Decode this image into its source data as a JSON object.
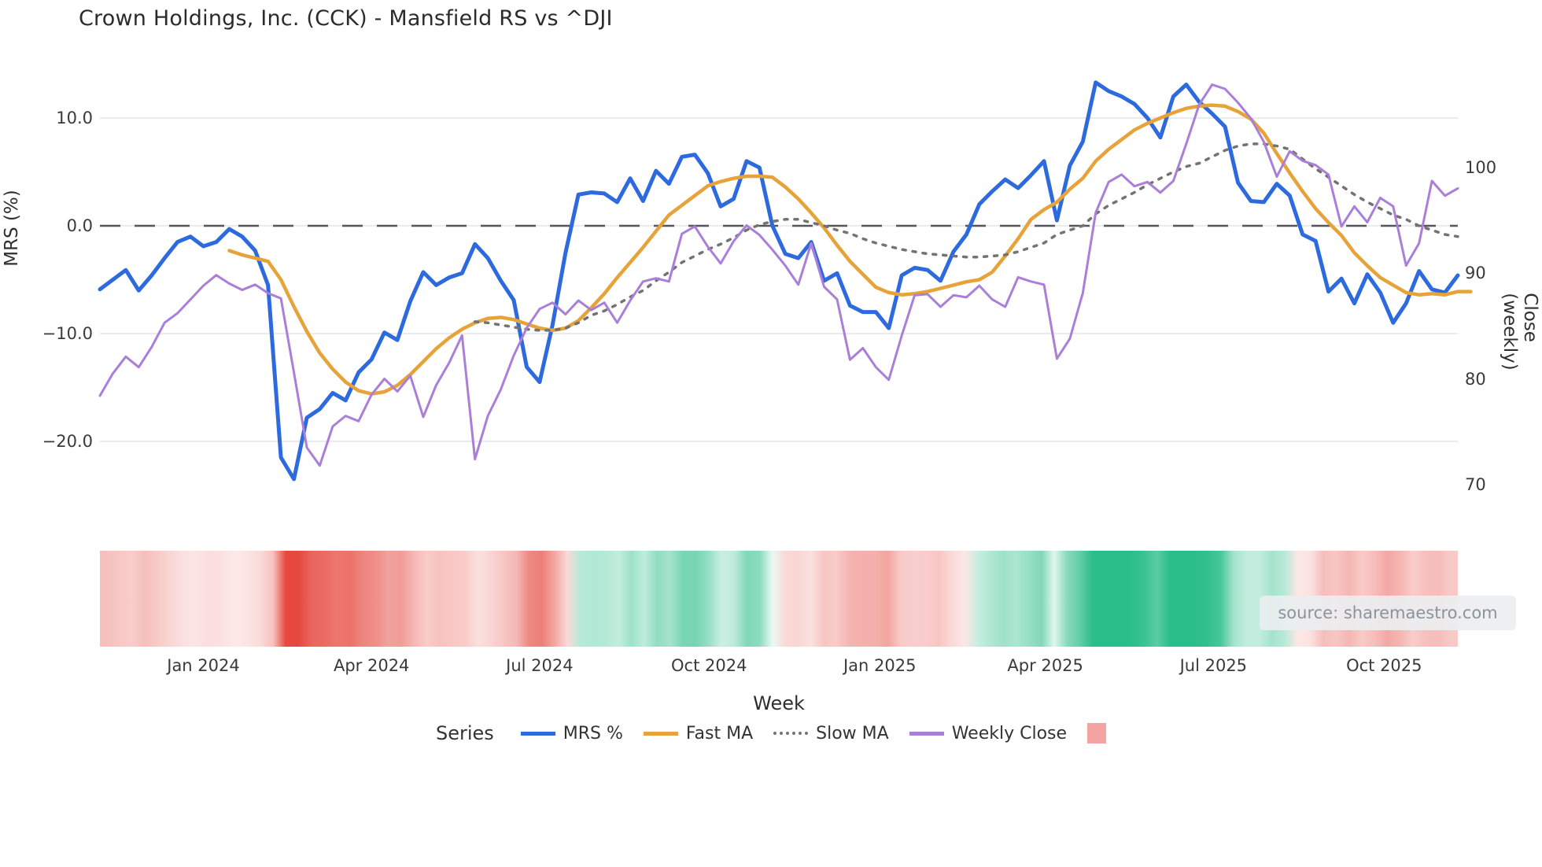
{
  "title": "Crown Holdings, Inc. (CCK) - Mansfield RS vs ^DJI",
  "source_label": "source: sharemaestro.com",
  "colors": {
    "mrs": "#2d6ade",
    "fast_ma": "#e7a33a",
    "slow_ma": "#737373",
    "weekly_close": "#a97fd8",
    "zero_dash": "#55555f",
    "grid": "#e9ebee",
    "heat_red": "#e6483f",
    "heat_green": "#2cbe8a",
    "legend_square": "#f5a2a2"
  },
  "legend": {
    "title": "Series",
    "items": [
      {
        "label": "MRS %",
        "swatch": "line-solid",
        "color_key": "mrs"
      },
      {
        "label": "Fast MA",
        "swatch": "line-solid",
        "color_key": "fast_ma"
      },
      {
        "label": "Slow MA",
        "swatch": "line-dotted",
        "color_key": "slow_ma"
      },
      {
        "label": "Weekly Close",
        "swatch": "line-solid",
        "color_key": "weekly_close"
      },
      {
        "label": "",
        "swatch": "square",
        "color_key": "legend_square"
      }
    ]
  },
  "chart_data": {
    "type": "line",
    "title": "Crown Holdings, Inc. (CCK) - Mansfield RS vs ^DJI",
    "xlabel": "Week",
    "frequency": "weekly",
    "start_date": "2023-11-06",
    "end_date": "2025-11-10",
    "n_weeks": 106,
    "x_tick_labels": [
      "Jan 2024",
      "Apr 2024",
      "Jul 2024",
      "Oct 2024",
      "Jan 2025",
      "Apr 2025",
      "Jul 2025",
      "Oct 2025"
    ],
    "x_tick_weeks": [
      8.0,
      21.0,
      34.0,
      47.1,
      60.3,
      73.1,
      86.1,
      99.3
    ],
    "y_left": {
      "label": "MRS (%)",
      "tick_labels": [
        "10.0",
        "0.0",
        "−10.0",
        "−20.0"
      ],
      "ticks": [
        10,
        0,
        -10,
        -20
      ],
      "range": [
        -26,
        14.5
      ],
      "zero_line": true,
      "grid": true
    },
    "y_right": {
      "label": "Close (weekly)",
      "tick_labels": [
        "100",
        "90",
        "80",
        "70"
      ],
      "ticks": [
        100,
        90,
        80,
        70
      ],
      "range": [
        66,
        112
      ]
    },
    "series": [
      {
        "name": "MRS %",
        "axis": "left",
        "style": "solid",
        "color_key": "mrs",
        "width": 5,
        "values": [
          -5.9,
          -5.0,
          -4.1,
          -6.0,
          -4.6,
          -3.0,
          -1.5,
          -1.0,
          -1.9,
          -1.5,
          -0.3,
          -1.0,
          -2.3,
          -5.5,
          -21.5,
          -23.5,
          -17.8,
          -17.0,
          -15.5,
          -16.2,
          -13.6,
          -12.4,
          -9.9,
          -10.6,
          -7.0,
          -4.3,
          -5.5,
          -4.8,
          -4.4,
          -1.7,
          -3.0,
          -5.1,
          -6.9,
          -13.1,
          -14.5,
          -9.2,
          -2.5,
          2.9,
          3.1,
          3.0,
          2.2,
          4.4,
          2.3,
          5.1,
          3.9,
          6.4,
          6.6,
          4.9,
          1.8,
          2.5,
          6.0,
          5.4,
          0.0,
          -2.6,
          -3.0,
          -1.5,
          -5.1,
          -4.4,
          -7.4,
          -8.0,
          -8.0,
          -9.5,
          -4.6,
          -3.9,
          -4.1,
          -5.1,
          -2.4,
          -0.8,
          2.0,
          3.2,
          4.3,
          3.5,
          4.7,
          6.0,
          0.5,
          5.6,
          7.8,
          13.3,
          12.5,
          12.0,
          11.3,
          10.0,
          8.2,
          12.0,
          13.1,
          11.5,
          10.4,
          9.2,
          4.0,
          2.3,
          2.2,
          3.9,
          2.8,
          -0.8,
          -1.4,
          -6.1,
          -4.9,
          -7.2,
          -4.5,
          -6.2,
          -9.0,
          -7.2,
          -4.2,
          -5.9,
          -6.2,
          -4.6
        ]
      },
      {
        "name": "Fast MA",
        "axis": "left",
        "style": "solid",
        "color_key": "fast_ma",
        "width": 4.5,
        "values": [
          null,
          null,
          null,
          null,
          null,
          null,
          null,
          null,
          null,
          null,
          -2.3,
          -2.7,
          -3.0,
          -3.3,
          -5.0,
          -7.5,
          -9.8,
          -11.8,
          -13.3,
          -14.5,
          -15.3,
          -15.6,
          -15.4,
          -14.8,
          -13.8,
          -12.6,
          -11.4,
          -10.4,
          -9.6,
          -9.0,
          -8.6,
          -8.5,
          -8.7,
          -9.1,
          -9.5,
          -9.7,
          -9.5,
          -8.8,
          -7.6,
          -6.3,
          -4.8,
          -3.4,
          -2.0,
          -0.5,
          1.0,
          1.9,
          2.8,
          3.7,
          4.1,
          4.4,
          4.6,
          4.6,
          4.5,
          3.6,
          2.5,
          1.2,
          -0.2,
          -1.8,
          -3.3,
          -4.5,
          -5.7,
          -6.2,
          -6.4,
          -6.3,
          -6.1,
          -5.8,
          -5.5,
          -5.2,
          -5.0,
          -4.3,
          -2.8,
          -1.2,
          0.6,
          1.5,
          2.2,
          3.4,
          4.4,
          6.0,
          7.1,
          8.0,
          8.9,
          9.5,
          10.0,
          10.5,
          10.9,
          11.1,
          11.2,
          11.1,
          10.6,
          9.9,
          8.6,
          6.7,
          4.9,
          3.2,
          1.6,
          0.3,
          -0.9,
          -2.5,
          -3.7,
          -4.8,
          -5.5,
          -6.2,
          -6.4,
          -6.3,
          -6.4,
          -6.1,
          -6.1
        ]
      },
      {
        "name": "Slow MA",
        "axis": "left",
        "style": "dotted",
        "color_key": "slow_ma",
        "width": 3.5,
        "values": [
          null,
          null,
          null,
          null,
          null,
          null,
          null,
          null,
          null,
          null,
          null,
          null,
          null,
          null,
          null,
          null,
          null,
          null,
          null,
          null,
          null,
          null,
          null,
          null,
          null,
          null,
          null,
          null,
          null,
          -8.9,
          -9.0,
          -9.2,
          -9.4,
          -9.6,
          -9.7,
          -9.7,
          -9.5,
          -9.0,
          -8.3,
          -7.9,
          -7.3,
          -6.6,
          -6.0,
          -5.1,
          -4.3,
          -3.4,
          -2.8,
          -2.2,
          -1.7,
          -1.1,
          -0.4,
          0.1,
          0.4,
          0.6,
          0.6,
          0.3,
          0.0,
          -0.4,
          -0.7,
          -1.2,
          -1.6,
          -1.9,
          -2.2,
          -2.4,
          -2.6,
          -2.7,
          -2.8,
          -2.9,
          -2.9,
          -2.8,
          -2.7,
          -2.4,
          -2.0,
          -1.6,
          -0.8,
          -0.4,
          0.0,
          1.1,
          1.9,
          2.5,
          3.1,
          3.8,
          4.4,
          5.0,
          5.5,
          5.8,
          6.4,
          7.0,
          7.4,
          7.6,
          7.6,
          7.4,
          7.1,
          6.2,
          5.3,
          4.5,
          3.7,
          2.9,
          2.2,
          1.6,
          1.0,
          0.6,
          0.0,
          -0.4,
          -0.8,
          -1.0
        ]
      },
      {
        "name": "Weekly Close",
        "axis": "right",
        "style": "solid",
        "color_key": "weekly_close",
        "width": 3,
        "values": [
          78.4,
          80.5,
          82.1,
          81.1,
          83.0,
          85.3,
          86.2,
          87.5,
          88.8,
          89.8,
          89.0,
          88.4,
          88.9,
          88.1,
          87.6,
          80.6,
          73.5,
          71.8,
          75.5,
          76.5,
          76.0,
          78.5,
          80.0,
          78.8,
          80.3,
          76.4,
          79.4,
          81.5,
          84.1,
          72.4,
          76.5,
          79.0,
          82.2,
          84.8,
          86.6,
          87.2,
          86.1,
          87.4,
          86.5,
          87.2,
          85.3,
          87.4,
          89.2,
          89.5,
          89.2,
          93.7,
          94.4,
          92.5,
          90.9,
          93.0,
          94.5,
          93.6,
          92.2,
          90.7,
          88.9,
          92.8,
          88.7,
          87.5,
          81.8,
          82.9,
          81.1,
          79.9,
          84.1,
          87.9,
          88.0,
          86.8,
          87.9,
          87.7,
          88.8,
          87.5,
          86.8,
          89.6,
          89.2,
          88.9,
          81.9,
          83.8,
          88.1,
          95.7,
          98.6,
          99.3,
          98.2,
          98.6,
          97.6,
          98.7,
          102.2,
          105.9,
          107.8,
          107.4,
          106.1,
          104.6,
          102.4,
          99.1,
          101.5,
          100.6,
          100.2,
          99.3,
          94.4,
          96.3,
          94.8,
          97.1,
          96.3,
          90.7,
          92.8,
          98.7,
          97.3,
          98.0
        ]
      }
    ],
    "heatmap_strip": {
      "description": "weekly color strip below chart, red for negative MRS, green for positive MRS, intensity proportional to magnitude",
      "derived_from": "MRS %",
      "negative_color": "#e6483f",
      "positive_color": "#2cbe8a"
    },
    "legend_position": "bottom-center",
    "source_annotation": "source: sharemaestro.com"
  }
}
